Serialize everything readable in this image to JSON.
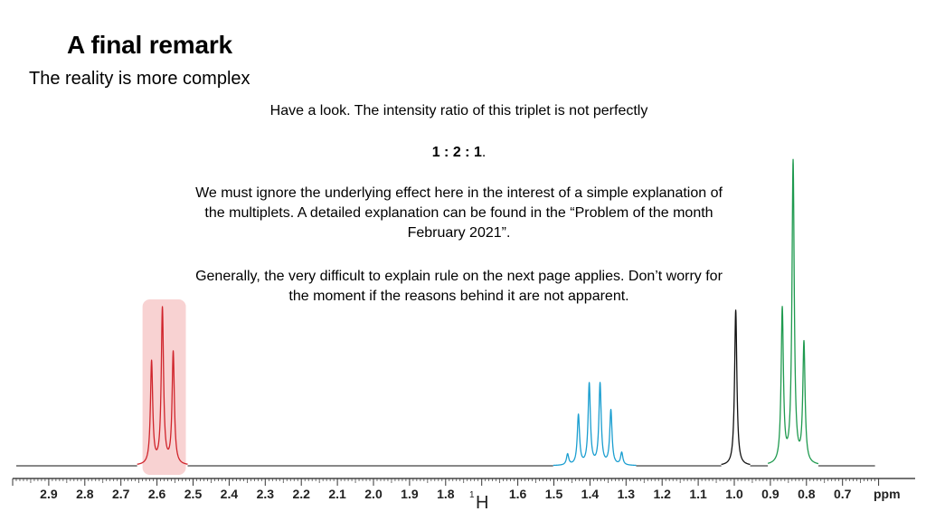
{
  "slide": {
    "title": "A final remark",
    "subtitle": "The reality is more complex",
    "note_line1": "Have a look. The intensity ratio of this triplet is not perfectly",
    "ratio": "1 : 2 : 1",
    "ratio_suffix": ".",
    "note_paragraph2": "We must ignore the underlying effect here in the interest of a simple explanation of the multiplets. A detailed explanation can be found in the “Problem of the month February 2021”.",
    "note_paragraph3": "Generally, the very difficult to explain rule on the next page applies. Don’t worry for the moment if the reasons behind it are not apparent."
  },
  "chart_data": {
    "type": "line",
    "xlabel_unit": "ppm",
    "nucleus_mass": "1",
    "nucleus_symbol": "H",
    "x_reversed": true,
    "xlim": [
      3.0,
      0.6
    ],
    "x_ticks": [
      "2.9",
      "2.8",
      "2.7",
      "2.6",
      "2.5",
      "2.4",
      "2.3",
      "2.2",
      "2.1",
      "2.0",
      "1.9",
      "1.8",
      "1.6",
      "1.5",
      "1.4",
      "1.3",
      "1.2",
      "1.1",
      "1.0",
      "0.9",
      "0.8",
      "0.7"
    ],
    "ylim": [
      0,
      1
    ],
    "grid": false,
    "highlight": {
      "x_range": [
        2.64,
        2.52
      ],
      "color": "#f8d2d2"
    },
    "multiplets": [
      {
        "kind": "triplet",
        "color": "#d0242b",
        "peaks": [
          {
            "x": 2.615,
            "y": 0.33
          },
          {
            "x": 2.585,
            "y": 0.5
          },
          {
            "x": 2.555,
            "y": 0.36
          }
        ]
      },
      {
        "kind": "sextet",
        "color": "#1a9ed0",
        "peaks": [
          {
            "x": 1.462,
            "y": 0.035
          },
          {
            "x": 1.432,
            "y": 0.16
          },
          {
            "x": 1.402,
            "y": 0.26
          },
          {
            "x": 1.372,
            "y": 0.26
          },
          {
            "x": 1.342,
            "y": 0.175
          },
          {
            "x": 1.312,
            "y": 0.04
          }
        ]
      },
      {
        "kind": "singlet",
        "color": "#111111",
        "peaks": [
          {
            "x": 0.996,
            "y": 0.5
          }
        ]
      },
      {
        "kind": "triplet",
        "color": "#1f9a4f",
        "peaks": [
          {
            "x": 0.867,
            "y": 0.495
          },
          {
            "x": 0.837,
            "y": 0.97
          },
          {
            "x": 0.807,
            "y": 0.385
          }
        ]
      }
    ]
  }
}
